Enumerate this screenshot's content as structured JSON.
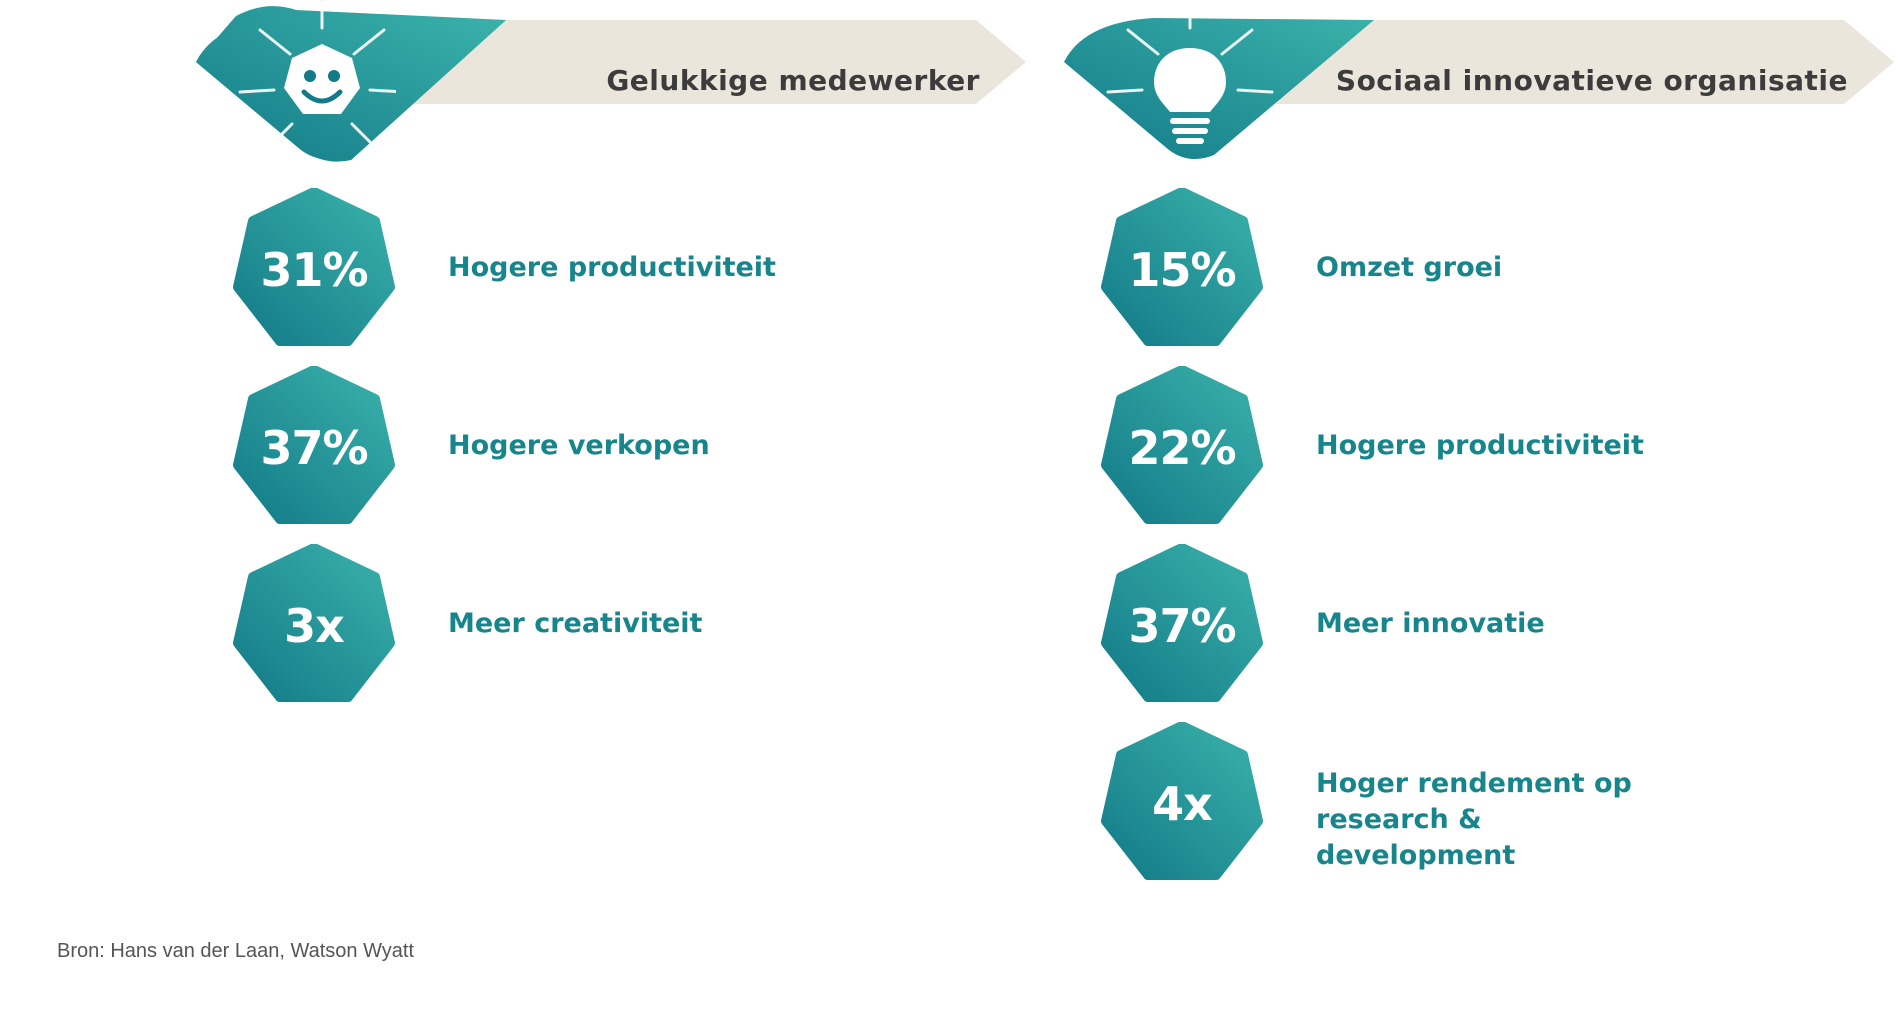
{
  "colors": {
    "teal_dark": "#137a88",
    "teal_light": "#3ab2aa",
    "banner_bg": "#eae6dc",
    "label_text": "#17868c",
    "title_text": "#3c3c3c"
  },
  "left": {
    "title": "Gelukkige medewerker",
    "icon": "smiley-icon",
    "items": [
      {
        "value": "31%",
        "label": "Hogere productiviteit"
      },
      {
        "value": "37%",
        "label": "Hogere verkopen"
      },
      {
        "value": "3x",
        "label": "Meer creativiteit"
      }
    ]
  },
  "right": {
    "title": "Sociaal innovatieve organisatie",
    "icon": "lightbulb-icon",
    "items": [
      {
        "value": "15%",
        "label": "Omzet groei"
      },
      {
        "value": "22%",
        "label": "Hogere productiviteit"
      },
      {
        "value": "37%",
        "label": "Meer innovatie"
      },
      {
        "value": "4x",
        "label": "Hoger rendement op research & development"
      }
    ]
  },
  "source": "Bron: Hans van der Laan, Watson Wyatt"
}
